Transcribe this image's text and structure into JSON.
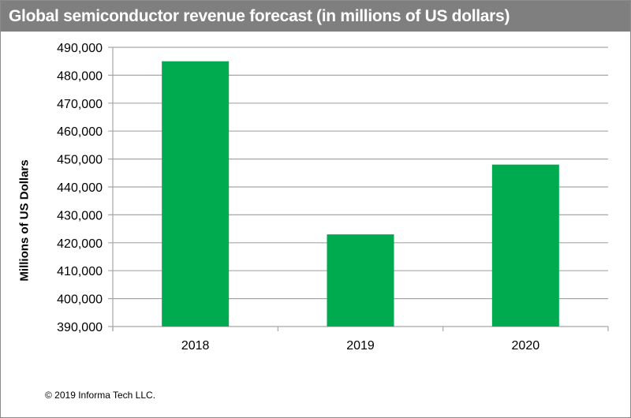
{
  "chart_data": {
    "type": "bar",
    "title": "Global semiconductor revenue forecast (in millions of US dollars)",
    "xlabel": "",
    "ylabel": "Millions  of US Dollars",
    "categories": [
      "2018",
      "2019",
      "2020"
    ],
    "values": [
      485000,
      423000,
      448000
    ],
    "ylim": [
      390000,
      490000
    ],
    "yticks": [
      390000,
      400000,
      410000,
      420000,
      430000,
      440000,
      450000,
      460000,
      470000,
      480000,
      490000
    ],
    "ytick_labels": [
      "390,000",
      "400,000",
      "410,000",
      "420,000",
      "430,000",
      "440,000",
      "450,000",
      "460,000",
      "470,000",
      "480,000",
      "490,000"
    ],
    "grid": true,
    "bar_color": "#00aa4f",
    "grid_color": "#a6a6a6"
  },
  "footer": {
    "copyright": "© 2019 Informa Tech LLC."
  }
}
